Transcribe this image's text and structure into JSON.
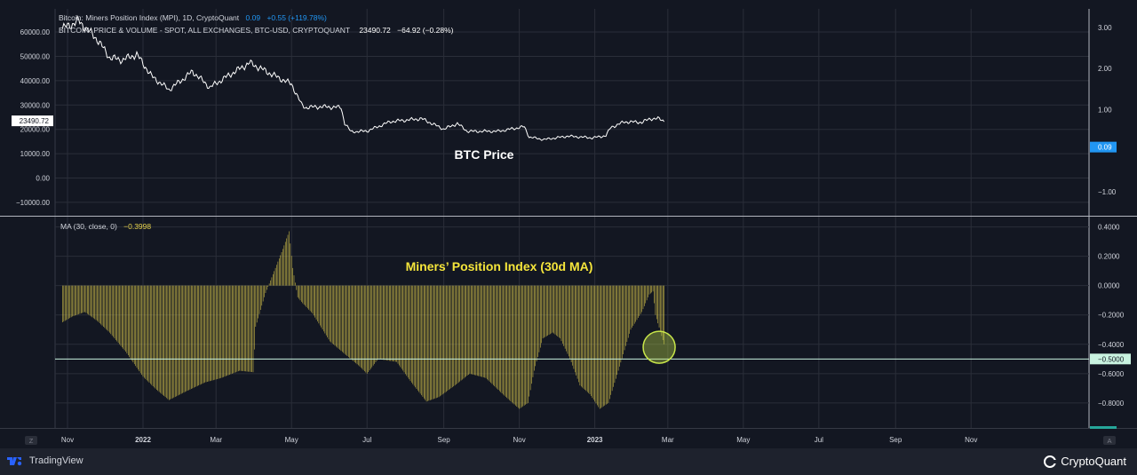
{
  "colors": {
    "background": "#131722",
    "grid": "#2a2e39",
    "price_line": "#ffffff",
    "mpi_bars": "#e8d44d",
    "highlight": "#c8e64a",
    "value_tag": "#2196f3"
  },
  "header": {
    "line1_title": "Bitcoin: Miners Position Index (MPI), 1D, CryptoQuant",
    "line1_value": "0.09",
    "line1_change": "+0.55 (+119.78%)",
    "line2_title": "BITCOIN: PRICE & VOLUME - SPOT, ALL EXCHANGES, BTC-USD, CRYPTOQUANT",
    "line2_value": "23490.72",
    "line2_change": "−64.92 (−0.28%)"
  },
  "lower_header": {
    "label": "MA (30, close, 0)",
    "value": "−0.3998"
  },
  "footer": {
    "left_brand": "TradingView",
    "right_brand": "CryptoQuant",
    "left_icon": "tradingview-logo-icon",
    "right_icon": "cryptoquant-logo-icon"
  },
  "bottom_bar": {
    "left_button": "Z",
    "right_button": "A"
  },
  "chart_data": [
    {
      "type": "line",
      "annotation": "BTC Price",
      "left_axis": {
        "ticks": [
          "60000.00",
          "50000.00",
          "40000.00",
          "30000.00",
          "20000.00",
          "10000.00",
          "0.00",
          "−10000.00"
        ],
        "tick_values": [
          60000,
          50000,
          40000,
          30000,
          20000,
          10000,
          0,
          -10000
        ],
        "range": [
          -15500,
          69500
        ],
        "current_label": "23490.72",
        "current_value": 23490.72
      },
      "right_axis": {
        "ticks": [
          "3.00",
          "2.00",
          "1.00",
          "−1.00"
        ],
        "tick_values": [
          3,
          2,
          1,
          -1
        ],
        "range": [
          -1.58,
          3.45
        ],
        "current_label": "0.09",
        "current_value": 0.09
      },
      "x_dates": [
        "2021-10-28",
        "2021-11-10",
        "2021-11-25",
        "2021-12-05",
        "2021-12-15",
        "2021-12-27",
        "2022-01-08",
        "2022-01-22",
        "2022-02-05",
        "2022-02-10",
        "2022-02-24",
        "2022-03-10",
        "2022-03-28",
        "2022-04-05",
        "2022-04-20",
        "2022-05-01",
        "2022-05-09",
        "2022-05-12",
        "2022-05-25",
        "2022-06-10",
        "2022-06-13",
        "2022-06-18",
        "2022-07-01",
        "2022-07-20",
        "2022-08-14",
        "2022-09-01",
        "2022-09-12",
        "2022-09-20",
        "2022-10-15",
        "2022-11-05",
        "2022-11-09",
        "2022-11-21",
        "2022-12-10",
        "2022-12-30",
        "2023-01-10",
        "2023-01-14",
        "2023-01-25",
        "2023-02-08",
        "2023-02-15",
        "2023-02-21",
        "2023-02-26"
      ],
      "price": [
        61500,
        64500,
        57000,
        49500,
        48500,
        50800,
        41800,
        36300,
        41700,
        43800,
        37200,
        41800,
        47300,
        45300,
        41300,
        38600,
        30200,
        29000,
        29300,
        29000,
        22500,
        19000,
        19300,
        23200,
        24400,
        20100,
        22400,
        19200,
        19200,
        21100,
        16800,
        15800,
        17200,
        16500,
        17400,
        20800,
        23100,
        22900,
        24400,
        24400,
        23490.72
      ]
    },
    {
      "type": "bar",
      "series_name": "MA (30, close, 0)",
      "annotation": "Miners’ Position Index (30d MA)",
      "y_axis": {
        "ticks": [
          "0.4000",
          "0.2000",
          "0.0000",
          "−0.2000",
          "−0.4000",
          "−0.6000",
          "−0.8000"
        ],
        "tick_values": [
          0.4,
          0.2,
          0.0,
          -0.2,
          -0.4,
          -0.6,
          -0.8
        ],
        "range": [
          -0.97,
          0.47
        ],
        "reference_line": -0.5,
        "reference_label": "−0.5000"
      },
      "x_axis_ticks": [
        "Nov",
        "2022",
        "Mar",
        "May",
        "Jul",
        "Sep",
        "Nov",
        "2023",
        "Mar",
        "May",
        "Jul",
        "Sep",
        "Nov"
      ],
      "x_axis_tick_dates": [
        "2021-11-01",
        "2022-01-01",
        "2022-03-01",
        "2022-05-01",
        "2022-07-01",
        "2022-09-01",
        "2022-11-01",
        "2023-01-01",
        "2023-03-01",
        "2023-05-01",
        "2023-07-01",
        "2023-09-01",
        "2023-11-01"
      ],
      "x_dates": [
        "2021-10-28",
        "2021-11-05",
        "2021-11-15",
        "2021-11-25",
        "2021-12-05",
        "2021-12-18",
        "2022-01-01",
        "2022-01-12",
        "2022-01-22",
        "2022-02-05",
        "2022-02-20",
        "2022-03-05",
        "2022-03-20",
        "2022-03-31",
        "2022-04-02",
        "2022-04-10",
        "2022-04-18",
        "2022-04-24",
        "2022-04-29",
        "2022-05-02",
        "2022-05-06",
        "2022-05-10",
        "2022-05-18",
        "2022-06-01",
        "2022-06-15",
        "2022-06-25",
        "2022-07-01",
        "2022-07-10",
        "2022-07-25",
        "2022-08-05",
        "2022-08-18",
        "2022-08-28",
        "2022-09-10",
        "2022-09-22",
        "2022-10-05",
        "2022-10-20",
        "2022-11-01",
        "2022-11-08",
        "2022-11-13",
        "2022-11-20",
        "2022-11-28",
        "2022-12-04",
        "2022-12-12",
        "2022-12-20",
        "2022-12-28",
        "2023-01-05",
        "2023-01-12",
        "2023-01-20",
        "2023-01-30",
        "2023-02-08",
        "2023-02-14",
        "2023-02-17",
        "2023-02-19",
        "2023-02-26"
      ],
      "values": [
        -0.25,
        -0.21,
        -0.18,
        -0.24,
        -0.32,
        -0.45,
        -0.62,
        -0.71,
        -0.78,
        -0.72,
        -0.66,
        -0.63,
        -0.58,
        -0.59,
        -0.28,
        -0.05,
        0.12,
        0.25,
        0.37,
        0.12,
        -0.08,
        -0.12,
        -0.19,
        -0.38,
        -0.48,
        -0.55,
        -0.6,
        -0.5,
        -0.52,
        -0.65,
        -0.79,
        -0.76,
        -0.68,
        -0.6,
        -0.63,
        -0.75,
        -0.84,
        -0.8,
        -0.58,
        -0.36,
        -0.32,
        -0.36,
        -0.5,
        -0.68,
        -0.74,
        -0.84,
        -0.8,
        -0.58,
        -0.3,
        -0.18,
        -0.06,
        -0.04,
        -0.2,
        -0.4
      ],
      "highlight_date": "2023-02-22"
    }
  ]
}
